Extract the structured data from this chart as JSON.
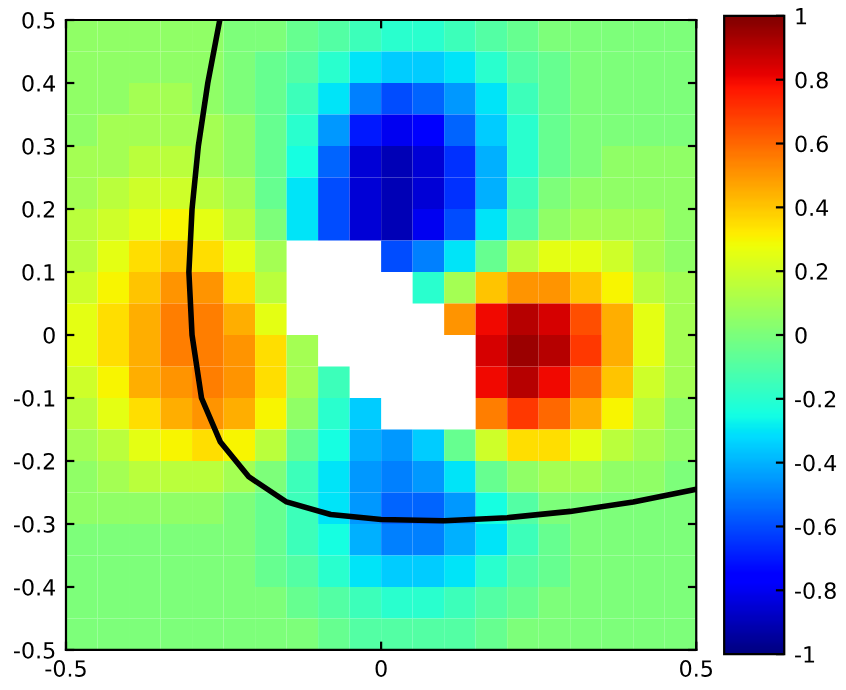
{
  "chart_data": {
    "type": "heatmap",
    "x": [
      -0.475,
      -0.425,
      -0.375,
      -0.325,
      -0.275,
      -0.225,
      -0.175,
      -0.125,
      -0.075,
      -0.025,
      0.025,
      0.075,
      0.125,
      0.175,
      0.225,
      0.275,
      0.325,
      0.375,
      0.425,
      0.475
    ],
    "y": [
      0.475,
      0.425,
      0.375,
      0.325,
      0.275,
      0.225,
      0.175,
      0.125,
      0.075,
      0.025,
      -0.025,
      -0.075,
      -0.125,
      -0.175,
      -0.225,
      -0.275,
      -0.325,
      -0.375,
      -0.425,
      -0.475
    ],
    "xlim": [
      -0.5,
      0.5
    ],
    "ylim": [
      -0.5,
      0.5
    ],
    "xticks": [
      -0.5,
      0,
      0.5
    ],
    "yticks": [
      -0.5,
      -0.4,
      -0.3,
      -0.2,
      -0.1,
      0,
      0.1,
      0.2,
      0.3,
      0.4,
      0.5
    ],
    "clim": [
      -1,
      1
    ],
    "cticks": [
      -1,
      -0.8,
      -0.6,
      -0.4,
      -0.2,
      0,
      0.2,
      0.4,
      0.6,
      0.8,
      1
    ],
    "cells": [
      [
        0.05,
        0.05,
        0.05,
        0.05,
        0.05,
        0,
        0,
        -0.05,
        -0.1,
        -0.15,
        -0.2,
        -0.2,
        -0.15,
        -0.1,
        -0.05,
        0,
        0,
        0,
        0,
        0
      ],
      [
        0.05,
        0.05,
        0.05,
        0.05,
        0.05,
        0,
        -0.05,
        -0.1,
        -0.2,
        -0.3,
        -0.35,
        -0.35,
        -0.3,
        -0.2,
        -0.1,
        -0.05,
        0,
        0,
        0,
        0
      ],
      [
        0.05,
        0.05,
        0.1,
        0.1,
        0.05,
        0,
        -0.05,
        -0.15,
        -0.3,
        -0.5,
        -0.6,
        -0.55,
        -0.45,
        -0.3,
        -0.15,
        -0.05,
        0,
        0,
        0,
        0
      ],
      [
        0.05,
        0.1,
        0.1,
        0.1,
        0.1,
        0.05,
        -0.05,
        -0.2,
        -0.45,
        -0.7,
        -0.8,
        -0.75,
        -0.55,
        -0.35,
        -0.2,
        -0.05,
        0,
        0,
        0,
        0
      ],
      [
        0.1,
        0.1,
        0.15,
        0.15,
        0.1,
        0.05,
        -0.05,
        -0.25,
        -0.55,
        -0.85,
        -0.9,
        -0.85,
        -0.65,
        -0.4,
        -0.2,
        -0.05,
        0,
        0.05,
        0.05,
        0.05
      ],
      [
        0.1,
        0.15,
        0.2,
        0.2,
        0.15,
        0.1,
        -0.05,
        -0.3,
        -0.6,
        -0.85,
        -0.9,
        -0.85,
        -0.65,
        -0.4,
        -0.15,
        0,
        0.05,
        0.05,
        0.05,
        0.05
      ],
      [
        0.15,
        0.2,
        0.25,
        0.3,
        0.25,
        0.15,
        0,
        -0.3,
        -0.6,
        -0.85,
        -0.9,
        -0.8,
        -0.6,
        -0.3,
        -0.1,
        0.05,
        0.1,
        0.1,
        0.1,
        0.05
      ],
      [
        0.15,
        0.25,
        0.35,
        0.4,
        0.35,
        0.25,
        0.1,
        null,
        null,
        null,
        -0.6,
        -0.5,
        -0.3,
        -0.05,
        0.15,
        0.25,
        0.25,
        0.2,
        0.1,
        0.05
      ],
      [
        0.2,
        0.3,
        0.4,
        0.5,
        0.5,
        0.35,
        0.15,
        null,
        null,
        null,
        null,
        -0.2,
        0.1,
        0.4,
        0.5,
        0.5,
        0.4,
        0.3,
        0.15,
        0.1
      ],
      [
        0.25,
        0.35,
        0.45,
        0.55,
        0.55,
        0.45,
        0.25,
        null,
        null,
        null,
        null,
        null,
        0.5,
        0.8,
        0.9,
        0.85,
        0.65,
        0.45,
        0.25,
        0.1
      ],
      [
        0.25,
        0.35,
        0.45,
        0.55,
        0.55,
        0.5,
        0.35,
        0.1,
        null,
        null,
        null,
        null,
        null,
        0.85,
        0.95,
        0.9,
        0.7,
        0.45,
        0.25,
        0.1
      ],
      [
        0.2,
        0.3,
        0.45,
        0.5,
        0.55,
        0.5,
        0.35,
        0.1,
        -0.15,
        null,
        null,
        null,
        null,
        0.8,
        0.9,
        0.8,
        0.6,
        0.4,
        0.2,
        0.1
      ],
      [
        0.15,
        0.25,
        0.35,
        0.45,
        0.5,
        0.45,
        0.3,
        0.05,
        -0.2,
        -0.35,
        null,
        null,
        null,
        0.55,
        0.7,
        0.6,
        0.45,
        0.3,
        0.15,
        0.05
      ],
      [
        0.1,
        0.15,
        0.25,
        0.3,
        0.35,
        0.3,
        0.15,
        -0.05,
        -0.25,
        -0.4,
        -0.45,
        -0.35,
        -0.05,
        0.2,
        0.35,
        0.35,
        0.25,
        0.15,
        0.1,
        0.05
      ],
      [
        0.05,
        0.1,
        0.15,
        0.15,
        0.15,
        0.1,
        0,
        -0.15,
        -0.3,
        -0.45,
        -0.5,
        -0.45,
        -0.3,
        -0.05,
        0.05,
        0.1,
        0.1,
        0.05,
        0.05,
        0
      ],
      [
        0.05,
        0.05,
        0.05,
        0.05,
        0.05,
        0,
        -0.05,
        -0.15,
        -0.3,
        -0.45,
        -0.55,
        -0.55,
        -0.45,
        -0.25,
        -0.1,
        0,
        0,
        0,
        0,
        0
      ],
      [
        0,
        0,
        0,
        0,
        0,
        0,
        -0.05,
        -0.15,
        -0.25,
        -0.4,
        -0.5,
        -0.5,
        -0.4,
        -0.3,
        -0.15,
        -0.05,
        0,
        0,
        0,
        0
      ],
      [
        0,
        0,
        0,
        0,
        0,
        0,
        -0.05,
        -0.1,
        -0.2,
        -0.3,
        -0.35,
        -0.35,
        -0.3,
        -0.2,
        -0.1,
        -0.05,
        0,
        0,
        0,
        0
      ],
      [
        0,
        0,
        0,
        0,
        0,
        0,
        0,
        -0.05,
        -0.1,
        -0.15,
        -0.2,
        -0.2,
        -0.15,
        -0.1,
        -0.05,
        0,
        0,
        0,
        0,
        0
      ],
      [
        0,
        0,
        0,
        0,
        0,
        0,
        0,
        0,
        -0.05,
        -0.1,
        -0.1,
        -0.1,
        -0.1,
        -0.05,
        0,
        0,
        0,
        0,
        0,
        0
      ]
    ],
    "series": [
      {
        "type": "line",
        "color": "#000000",
        "x": [
          -0.256,
          -0.275,
          -0.29,
          -0.3,
          -0.305,
          -0.3,
          -0.285,
          -0.255,
          -0.21,
          -0.15,
          -0.08,
          0,
          0.1,
          0.2,
          0.3,
          0.4,
          0.5
        ],
        "values": [
          0.5,
          0.4,
          0.3,
          0.2,
          0.1,
          0,
          -0.1,
          -0.17,
          -0.225,
          -0.265,
          -0.285,
          -0.293,
          -0.295,
          -0.29,
          -0.28,
          -0.265,
          -0.245
        ]
      }
    ]
  }
}
